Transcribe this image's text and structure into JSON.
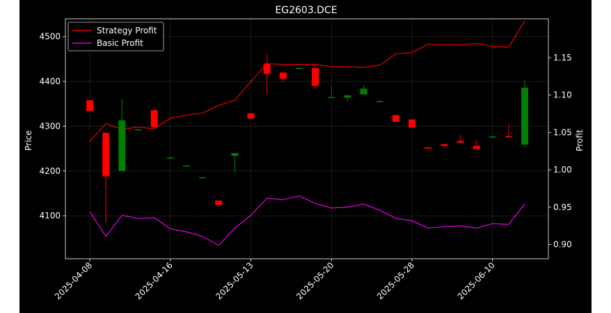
{
  "chart_data": {
    "type": "candlestick",
    "title": "EG2603.DCE",
    "xlabel": "",
    "ylabel": "Price",
    "y2label": "Profit",
    "ylim": [
      4004,
      4540
    ],
    "y2lim": [
      0.881,
      1.202
    ],
    "yticks": [
      4100,
      4200,
      4300,
      4400,
      4500
    ],
    "y2ticks": [
      0.9,
      0.95,
      1.0,
      1.05,
      1.1,
      1.15
    ],
    "y2tick_labels": [
      "0.90",
      "0.95",
      "1.00",
      "1.05",
      "1.10",
      "1.15"
    ],
    "xtick_labels": [
      "2025-04-08",
      "2025-04-16",
      "2025-05-13",
      "2025-05-20",
      "2025-05-28",
      "2025-06-10"
    ],
    "xtick_positions": [
      0,
      5,
      10,
      15,
      20,
      25
    ],
    "grid": true,
    "legend_position": "top-left",
    "colors": {
      "up": "#008000",
      "down": "#ff0000",
      "strategy": "#ff0000",
      "basic": "#ff00ff",
      "background": "#000000",
      "foreground": "#ffffff"
    },
    "candles": [
      {
        "open": 4358,
        "close": 4334,
        "high": 4358,
        "low": 4334
      },
      {
        "open": 4285,
        "close": 4188,
        "high": 4288,
        "low": 4085
      },
      {
        "open": 4200,
        "close": 4313,
        "high": 4361,
        "low": 4200
      },
      {
        "open": 4293,
        "close": 4293,
        "high": 4294,
        "low": 4292
      },
      {
        "open": 4336,
        "close": 4298,
        "high": 4336,
        "low": 4298
      },
      {
        "open": 4230,
        "close": 4230,
        "high": 4231,
        "low": 4229
      },
      {
        "open": 4212,
        "close": 4212,
        "high": 4213,
        "low": 4211
      },
      {
        "open": 4186,
        "close": 4186,
        "high": 4187,
        "low": 4185
      },
      {
        "open": 4134,
        "close": 4124,
        "high": 4134,
        "low": 4124
      },
      {
        "open": 4234,
        "close": 4240,
        "high": 4240,
        "low": 4196
      },
      {
        "open": 4329,
        "close": 4317,
        "high": 4329,
        "low": 4317
      },
      {
        "open": 4440,
        "close": 4417,
        "high": 4460,
        "low": 4371
      },
      {
        "open": 4420,
        "close": 4406,
        "high": 4420,
        "low": 4398
      },
      {
        "open": 4430,
        "close": 4430,
        "high": 4431,
        "low": 4429
      },
      {
        "open": 4430,
        "close": 4390,
        "high": 4438,
        "low": 4383
      },
      {
        "open": 4365,
        "close": 4365,
        "high": 4390,
        "low": 4363
      },
      {
        "open": 4364,
        "close": 4369,
        "high": 4369,
        "low": 4355
      },
      {
        "open": 4371,
        "close": 4384,
        "high": 4391,
        "low": 4371
      },
      {
        "open": 4356,
        "close": 4356,
        "high": 4357,
        "low": 4355
      },
      {
        "open": 4325,
        "close": 4310,
        "high": 4325,
        "low": 4310
      },
      {
        "open": 4315,
        "close": 4297,
        "high": 4315,
        "low": 4297
      },
      {
        "open": 4253,
        "close": 4250,
        "high": 4253,
        "low": 4250
      },
      {
        "open": 4260,
        "close": 4256,
        "high": 4260,
        "low": 4250
      },
      {
        "open": 4267,
        "close": 4263,
        "high": 4280,
        "low": 4263
      },
      {
        "open": 4256,
        "close": 4249,
        "high": 4268,
        "low": 4249
      },
      {
        "open": 4277,
        "close": 4277,
        "high": 4278,
        "low": 4276
      },
      {
        "open": 4278,
        "close": 4275,
        "high": 4304,
        "low": 4275
      },
      {
        "open": 4259,
        "close": 4386,
        "high": 4404,
        "low": 4252
      }
    ],
    "series": [
      {
        "name": "Strategy Profit",
        "axis": "right",
        "values": [
          1.038,
          1.062,
          1.054,
          1.057,
          1.055,
          1.069,
          1.073,
          1.076,
          1.086,
          1.093,
          1.118,
          1.142,
          1.141,
          1.141,
          1.141,
          1.138,
          1.138,
          1.137,
          1.14,
          1.155,
          1.157,
          1.168,
          1.167,
          1.167,
          1.169,
          1.165,
          1.164,
          1.199
        ]
      },
      {
        "name": "Basic Profit",
        "axis": "right",
        "values": [
          0.944,
          0.911,
          0.939,
          0.935,
          0.936,
          0.921,
          0.917,
          0.911,
          0.899,
          0.922,
          0.939,
          0.962,
          0.96,
          0.965,
          0.955,
          0.949,
          0.95,
          0.954,
          0.946,
          0.935,
          0.932,
          0.922,
          0.924,
          0.925,
          0.922,
          0.928,
          0.927,
          0.954
        ]
      }
    ]
  }
}
